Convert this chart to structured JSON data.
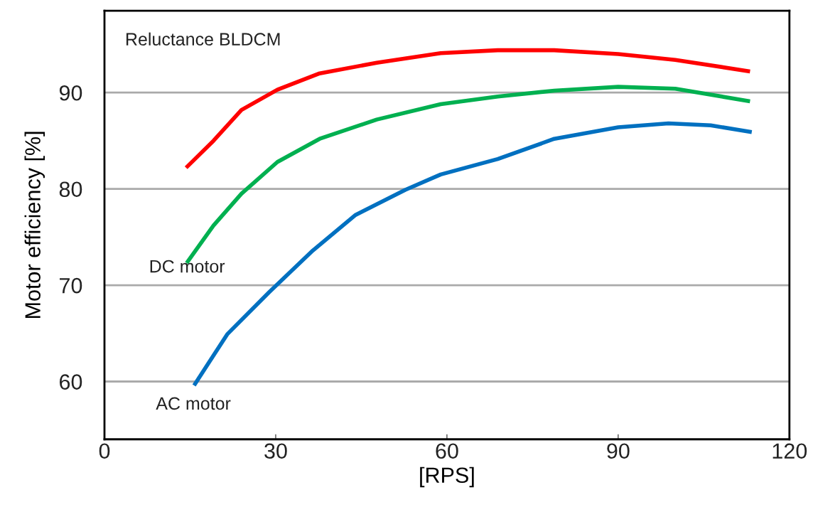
{
  "chart_data": {
    "type": "line",
    "xlabel": "[RPS]",
    "ylabel": "Motor efficiency [%]",
    "xlim": [
      0,
      120
    ],
    "xticks": [
      0,
      30,
      60,
      90,
      120
    ],
    "ylim": [
      54,
      98.5
    ],
    "yticks": [
      60,
      70,
      80,
      90
    ],
    "grid": "y",
    "legend": false,
    "marker": "none",
    "line_style": "solid",
    "series": [
      {
        "name": "Reluctance BLDCM",
        "color": "#ff0000",
        "x": [
          14.3,
          19.1,
          24,
          30.3,
          37.7,
          47.7,
          58.9,
          68.9,
          78.8,
          90,
          100,
          113.1
        ],
        "values": [
          82.2,
          85.0,
          88.2,
          90.3,
          92.0,
          93.1,
          94.1,
          94.4,
          94.4,
          94.0,
          93.4,
          92.2
        ]
      },
      {
        "name": "DC motor",
        "color": "#00b050",
        "x": [
          14.4,
          19.1,
          24,
          30.3,
          37.7,
          47.7,
          58.9,
          68.9,
          78.8,
          90,
          100,
          113.1
        ],
        "values": [
          72.3,
          76.2,
          79.5,
          82.8,
          85.2,
          87.2,
          88.8,
          89.6,
          90.2,
          90.6,
          90.4,
          89.1
        ]
      },
      {
        "name": "AC motor",
        "color": "#0070c0",
        "x": [
          15.7,
          21.5,
          28.9,
          36.5,
          44,
          52.7,
          58.9,
          68.9,
          78.8,
          90,
          98.8,
          106.2,
          113.4
        ],
        "values": [
          59.6,
          64.9,
          69.3,
          73.6,
          77.3,
          79.9,
          81.5,
          83.1,
          85.2,
          86.4,
          86.8,
          86.6,
          85.9
        ]
      }
    ]
  }
}
